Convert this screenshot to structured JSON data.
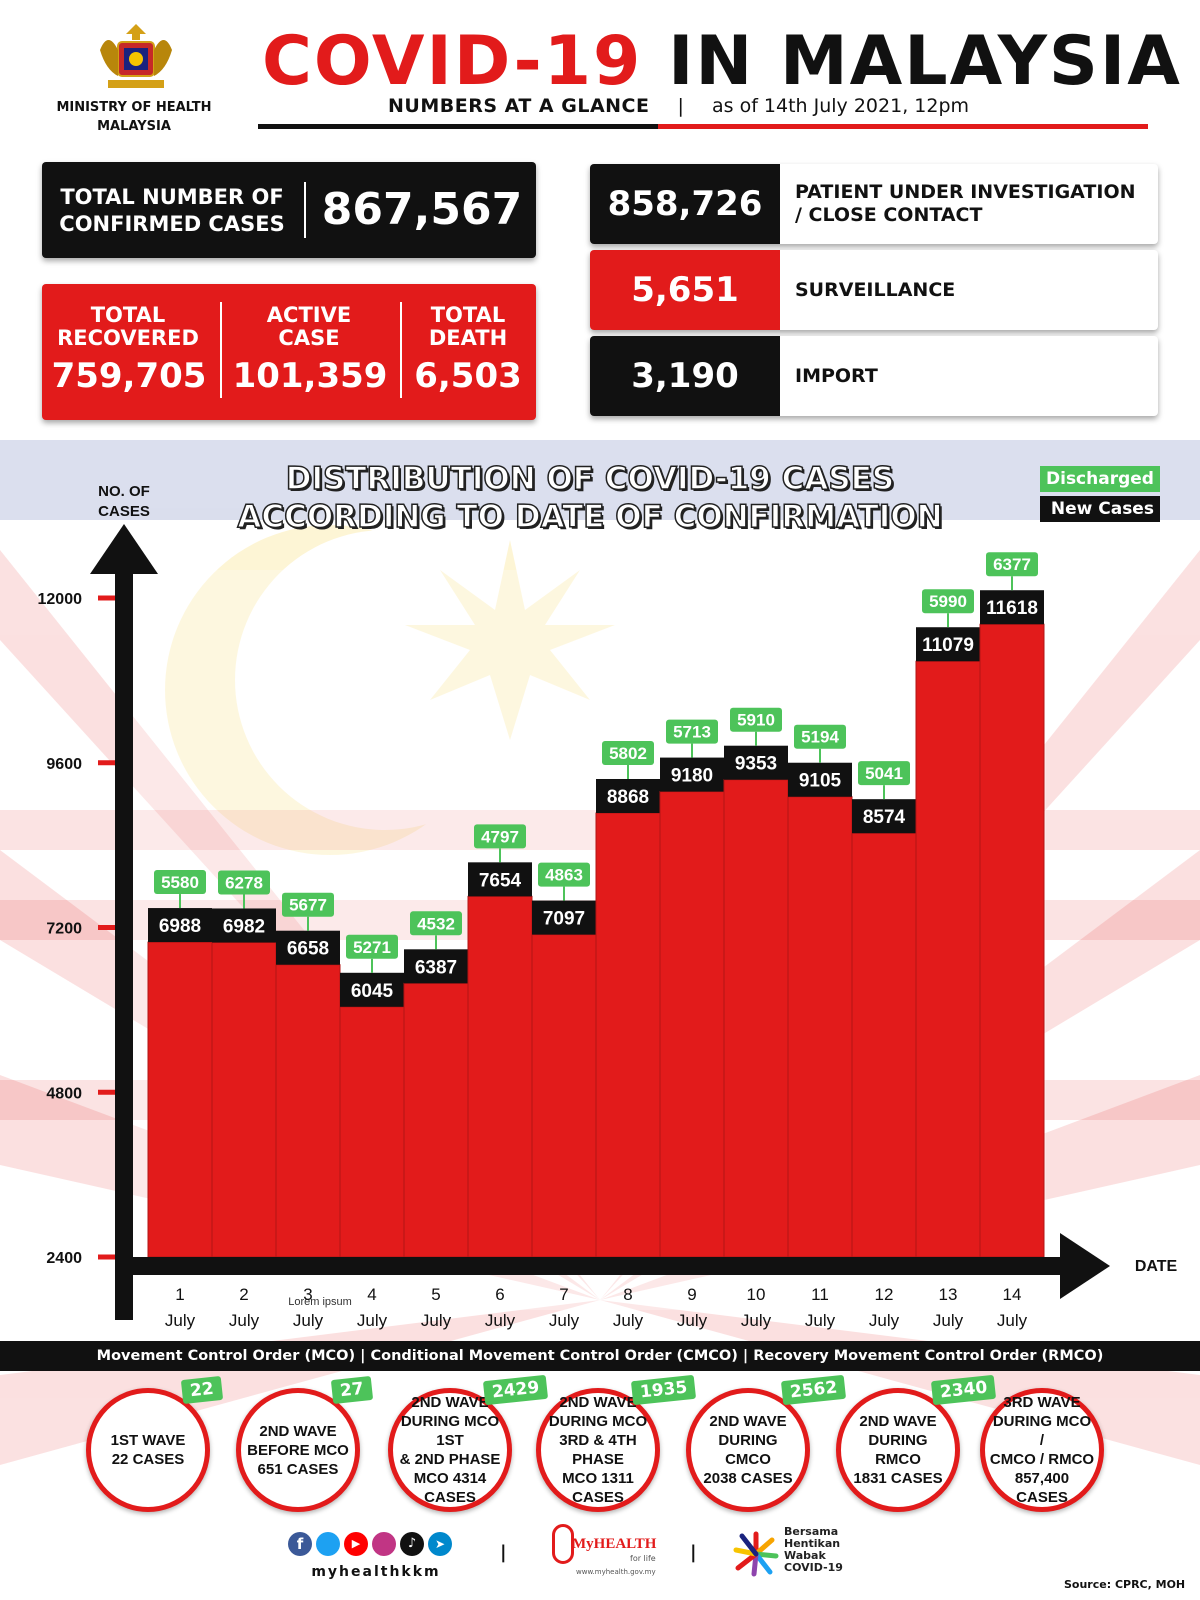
{
  "header": {
    "ministry_line1": "MINISTRY OF HEALTH",
    "ministry_line2": "MALAYSIA",
    "title_red": "COVID-19",
    "title_black": "IN MALAYSIA",
    "subtitle_left": "NUMBERS AT A GLANCE",
    "subtitle_sep": "|",
    "subtitle_right": "as of 14th July 2021, 12pm"
  },
  "totals": {
    "confirmed_label_1": "TOTAL NUMBER OF",
    "confirmed_label_2": "CONFIRMED CASES",
    "confirmed_value": "867,567",
    "recovered_label_1": "TOTAL",
    "recovered_label_2": "RECOVERED",
    "recovered_value": "759,705",
    "active_label_1": "ACTIVE",
    "active_label_2": "CASE",
    "active_value": "101,359",
    "death_label_1": "TOTAL",
    "death_label_2": "DEATH",
    "death_value": "6,503"
  },
  "panels": [
    {
      "value": "858,726",
      "label": "PATIENT UNDER INVESTIGATION / CLOSE CONTACT",
      "color": "#111111"
    },
    {
      "value": "5,651",
      "label": "SURVEILLANCE",
      "color": "#e21b1b"
    },
    {
      "value": "3,190",
      "label": "IMPORT",
      "color": "#111111"
    }
  ],
  "chart_data": {
    "type": "bar",
    "title_line1": "DISTRIBUTION OF COVID-19 CASES",
    "title_line2": "ACCORDING TO DATE OF CONFIRMATION",
    "ylabel_line1": "NO. OF",
    "ylabel_line2": "CASES",
    "xlabel": "DATE",
    "yticks": [
      2400,
      4800,
      7200,
      9600,
      12000
    ],
    "ylim": [
      2400,
      12000
    ],
    "categories": [
      "1 July",
      "2 July",
      "3 July",
      "4 July",
      "5 July",
      "6 July",
      "7 July",
      "8 July",
      "9 July",
      "10 July",
      "11 July",
      "12 July",
      "13 July",
      "14 July"
    ],
    "series": [
      {
        "name": "New Cases",
        "color": "#111111",
        "values": [
          6988,
          6982,
          6658,
          6045,
          6387,
          7654,
          7097,
          8868,
          9180,
          9353,
          9105,
          8574,
          11079,
          11618
        ]
      },
      {
        "name": "Discharged",
        "color": "#4dc35a",
        "values": [
          5580,
          6278,
          5677,
          5271,
          4532,
          4797,
          4863,
          5802,
          5713,
          5910,
          5194,
          5041,
          5990,
          6377
        ]
      }
    ],
    "annotation": "Lorem ipsum",
    "bar_color": "#e21b1b"
  },
  "mco_banner": "Movement Control Order (MCO) | Conditional Movement Control Order (CMCO) | Recovery Movement Control Order (RMCO)",
  "waves": [
    {
      "text": "1ST WAVE\n22 CASES",
      "badge": "22"
    },
    {
      "text": "2ND WAVE\nBEFORE MCO\n651 CASES",
      "badge": "27"
    },
    {
      "text": "2ND WAVE\nDURING MCO 1ST\n& 2ND PHASE\nMCO 4314\nCASES",
      "badge": "2429"
    },
    {
      "text": "2ND WAVE\nDURING MCO\n3RD & 4TH PHASE\nMCO 1311\nCASES",
      "badge": "1935"
    },
    {
      "text": "2ND WAVE\nDURING CMCO\n2038 CASES",
      "badge": "2562"
    },
    {
      "text": "2ND WAVE\nDURING RMCO\n1831 CASES",
      "badge": "2340"
    },
    {
      "text": "3RD WAVE\nDURING MCO /\nCMCO / RMCO\n857,400\nCASES",
      "badge": ""
    }
  ],
  "footer": {
    "social_handle": "myhealthkkm",
    "myhealth_label": "MyHEALTH",
    "myhealth_sub": "for life",
    "myhealth_url": "www.myhealth.gov.my",
    "campaign_1": "Bersama",
    "campaign_2": "Hentikan",
    "campaign_3": "Wabak",
    "campaign_4": "COVID-19",
    "source": "Source: CPRC, MOH",
    "sep": "|"
  }
}
